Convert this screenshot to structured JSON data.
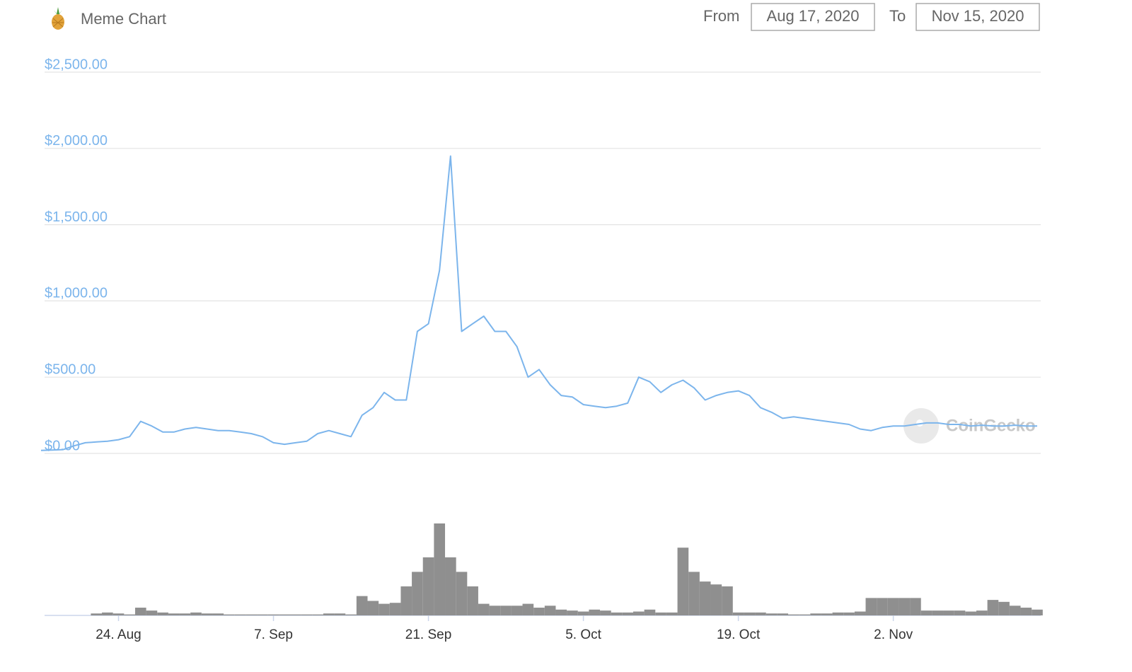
{
  "header": {
    "title": "Meme Chart",
    "from_label": "From",
    "from_date": "Aug 17, 2020",
    "to_label": "To",
    "to_date": "Nov 15, 2020"
  },
  "chart_data": {
    "type": "line",
    "watermark": "CoinGecko",
    "color": "#7cb5ec",
    "grid": true,
    "x": [
      "Aug 17",
      "Aug 18",
      "Aug 19",
      "Aug 20",
      "Aug 21",
      "Aug 22",
      "Aug 23",
      "Aug 24",
      "Aug 25",
      "Aug 26",
      "Aug 27",
      "Aug 28",
      "Aug 29",
      "Aug 30",
      "Aug 31",
      "Sep 1",
      "Sep 2",
      "Sep 3",
      "Sep 4",
      "Sep 5",
      "Sep 6",
      "Sep 7",
      "Sep 8",
      "Sep 9",
      "Sep 10",
      "Sep 11",
      "Sep 12",
      "Sep 13",
      "Sep 14",
      "Sep 15",
      "Sep 16",
      "Sep 17",
      "Sep 18",
      "Sep 19",
      "Sep 20",
      "Sep 21",
      "Sep 22",
      "Sep 23",
      "Sep 24",
      "Sep 25",
      "Sep 26",
      "Sep 27",
      "Sep 28",
      "Sep 29",
      "Sep 30",
      "Oct 1",
      "Oct 2",
      "Oct 3",
      "Oct 4",
      "Oct 5",
      "Oct 6",
      "Oct 7",
      "Oct 8",
      "Oct 9",
      "Oct 10",
      "Oct 11",
      "Oct 12",
      "Oct 13",
      "Oct 14",
      "Oct 15",
      "Oct 16",
      "Oct 17",
      "Oct 18",
      "Oct 19",
      "Oct 20",
      "Oct 21",
      "Oct 22",
      "Oct 23",
      "Oct 24",
      "Oct 25",
      "Oct 26",
      "Oct 27",
      "Oct 28",
      "Oct 29",
      "Oct 30",
      "Oct 31",
      "Nov 1",
      "Nov 2",
      "Nov 3",
      "Nov 4",
      "Nov 5",
      "Nov 6",
      "Nov 7",
      "Nov 8",
      "Nov 9",
      "Nov 10",
      "Nov 11",
      "Nov 12",
      "Nov 13",
      "Nov 14",
      "Nov 15"
    ],
    "values": [
      20,
      22,
      25,
      50,
      70,
      75,
      80,
      90,
      110,
      210,
      180,
      140,
      140,
      160,
      170,
      160,
      150,
      150,
      140,
      130,
      110,
      70,
      60,
      70,
      80,
      130,
      150,
      130,
      110,
      250,
      300,
      400,
      350,
      350,
      800,
      850,
      1200,
      1950,
      800,
      850,
      900,
      800,
      800,
      700,
      500,
      550,
      450,
      380,
      370,
      320,
      310,
      300,
      310,
      330,
      500,
      470,
      400,
      450,
      480,
      430,
      350,
      380,
      400,
      410,
      380,
      300,
      270,
      230,
      240,
      230,
      220,
      210,
      200,
      190,
      160,
      150,
      170,
      180,
      180,
      190,
      200,
      200,
      190,
      190,
      180,
      185,
      180,
      180,
      185,
      180,
      180
    ],
    "volume": {
      "color": "#8f8f8f",
      "values": [
        0,
        0,
        0,
        0,
        0,
        2,
        3,
        2,
        1,
        8,
        5,
        3,
        2,
        2,
        3,
        2,
        2,
        1,
        1,
        1,
        1,
        1,
        1,
        1,
        1,
        1,
        2,
        2,
        1,
        20,
        15,
        12,
        13,
        30,
        45,
        60,
        95,
        60,
        45,
        30,
        12,
        10,
        10,
        10,
        12,
        8,
        10,
        6,
        5,
        4,
        6,
        5,
        3,
        3,
        4,
        6,
        3,
        3,
        70,
        45,
        35,
        32,
        30,
        3,
        3,
        3,
        2,
        2,
        1,
        1,
        2,
        2,
        3,
        3,
        4,
        18,
        18,
        18,
        18,
        18,
        5,
        5,
        5,
        5,
        4,
        5,
        16,
        14,
        10,
        8,
        6
      ]
    },
    "ylim": [
      0,
      2500
    ],
    "yticks": [
      {
        "value": 0,
        "label": "$0.00"
      },
      {
        "value": 500,
        "label": "$500.00"
      },
      {
        "value": 1000,
        "label": "$1,000.00"
      },
      {
        "value": 1500,
        "label": "$1,500.00"
      },
      {
        "value": 2000,
        "label": "$2,000.00"
      },
      {
        "value": 2500,
        "label": "$2,500.00"
      }
    ],
    "xticks": [
      {
        "value": "Aug 24",
        "label": "24. Aug"
      },
      {
        "value": "Sep 7",
        "label": "7. Sep"
      },
      {
        "value": "Sep 21",
        "label": "21. Sep"
      },
      {
        "value": "Oct 5",
        "label": "5. Oct"
      },
      {
        "value": "Oct 19",
        "label": "19. Oct"
      },
      {
        "value": "Nov 2",
        "label": "2. Nov"
      }
    ]
  }
}
